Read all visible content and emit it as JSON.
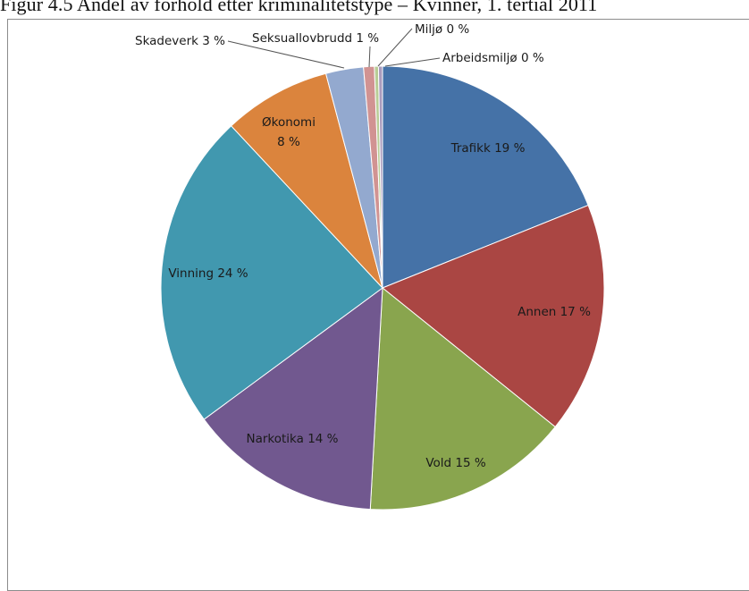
{
  "figure": {
    "caption": "Figur 4.5 Andel av forhold etter kriminalitetstype – Kvinner, 1. tertial 2011"
  },
  "chart_data": {
    "type": "pie",
    "title": "",
    "start_angle_deg": 0,
    "direction": "clockwise",
    "slices": [
      {
        "name": "Trafikk",
        "value": 19.3,
        "label": "Trafikk 19 %",
        "color": "#4572a7"
      },
      {
        "name": "Annen",
        "value": 17.2,
        "label": "Annen 17 %",
        "color": "#aa4643"
      },
      {
        "name": "Vold",
        "value": 15.4,
        "label": "Vold 15 %",
        "color": "#89a54e"
      },
      {
        "name": "Narkotika",
        "value": 14.3,
        "label": "Narkotika 14 %",
        "color": "#71588f"
      },
      {
        "name": "Vinning",
        "value": 23.6,
        "label": "Vinning 24 %",
        "color": "#4198af"
      },
      {
        "name": "Økonomi",
        "value": 8.0,
        "label": "Økonomi\n8 %",
        "color": "#db843d"
      },
      {
        "name": "Skadeverk",
        "value": 2.8,
        "label": "Skadeverk 3 %",
        "color": "#93a9cf"
      },
      {
        "name": "Seksuallovbrudd",
        "value": 0.8,
        "label": "Seksuallovbrudd 1 %",
        "color": "#d19392"
      },
      {
        "name": "Miljø",
        "value": 0.3,
        "label": "Miljø 0 %",
        "color": "#b9cd96"
      },
      {
        "name": "Arbeidsmiljø",
        "value": 0.3,
        "label": "Arbeidsmiljø 0 %",
        "color": "#a99bbd"
      }
    ]
  }
}
